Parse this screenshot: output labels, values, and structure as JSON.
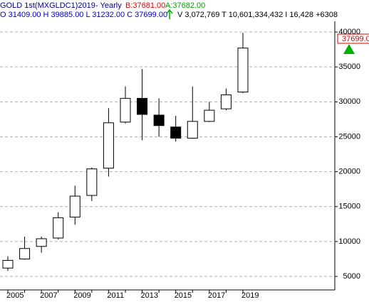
{
  "chart_data": {
    "type": "candlestick",
    "title": "GOLD 1st(MXGLDC1)2019",
    "subtitle": "- Yearly",
    "bid": "B:37681.00",
    "ask": "A:37682.00",
    "ohlc_text": "O 31409.00 H 39885.00 L 31232.00 C 37699.00",
    "volume_text": "V 3,072,769 T 10,601,334,432 I 16,428 +6308",
    "last_label": "37699.00",
    "categories": [
      "2005",
      null,
      "2007",
      null,
      "2009",
      null,
      "2011",
      null,
      "2013",
      null,
      "2015",
      null,
      "2017",
      null,
      "2019"
    ],
    "open": [
      6200,
      7500,
      9300,
      10500,
      13500,
      16600,
      20500,
      27100,
      30500,
      28100,
      26400,
      24800,
      27200,
      29000,
      31409
    ],
    "high": [
      7900,
      10700,
      10700,
      14200,
      18000,
      20600,
      29100,
      32200,
      34700,
      30500,
      28000,
      32200,
      30000,
      31900,
      39885
    ],
    "low": [
      5800,
      7400,
      8400,
      10300,
      12400,
      15800,
      19300,
      26900,
      24500,
      25000,
      24300,
      24700,
      27100,
      28800,
      31232
    ],
    "close": [
      7300,
      9000,
      10400,
      13400,
      16500,
      20400,
      27000,
      30500,
      28200,
      26600,
      24800,
      27200,
      28800,
      31000,
      37699
    ],
    "ylim": [
      3070,
      41530
    ],
    "yticks": [
      5000,
      10000,
      15000,
      20000,
      25000,
      30000,
      35000,
      40000
    ],
    "grid": true,
    "up_color": "#ffffff",
    "down_color": "#000000"
  }
}
